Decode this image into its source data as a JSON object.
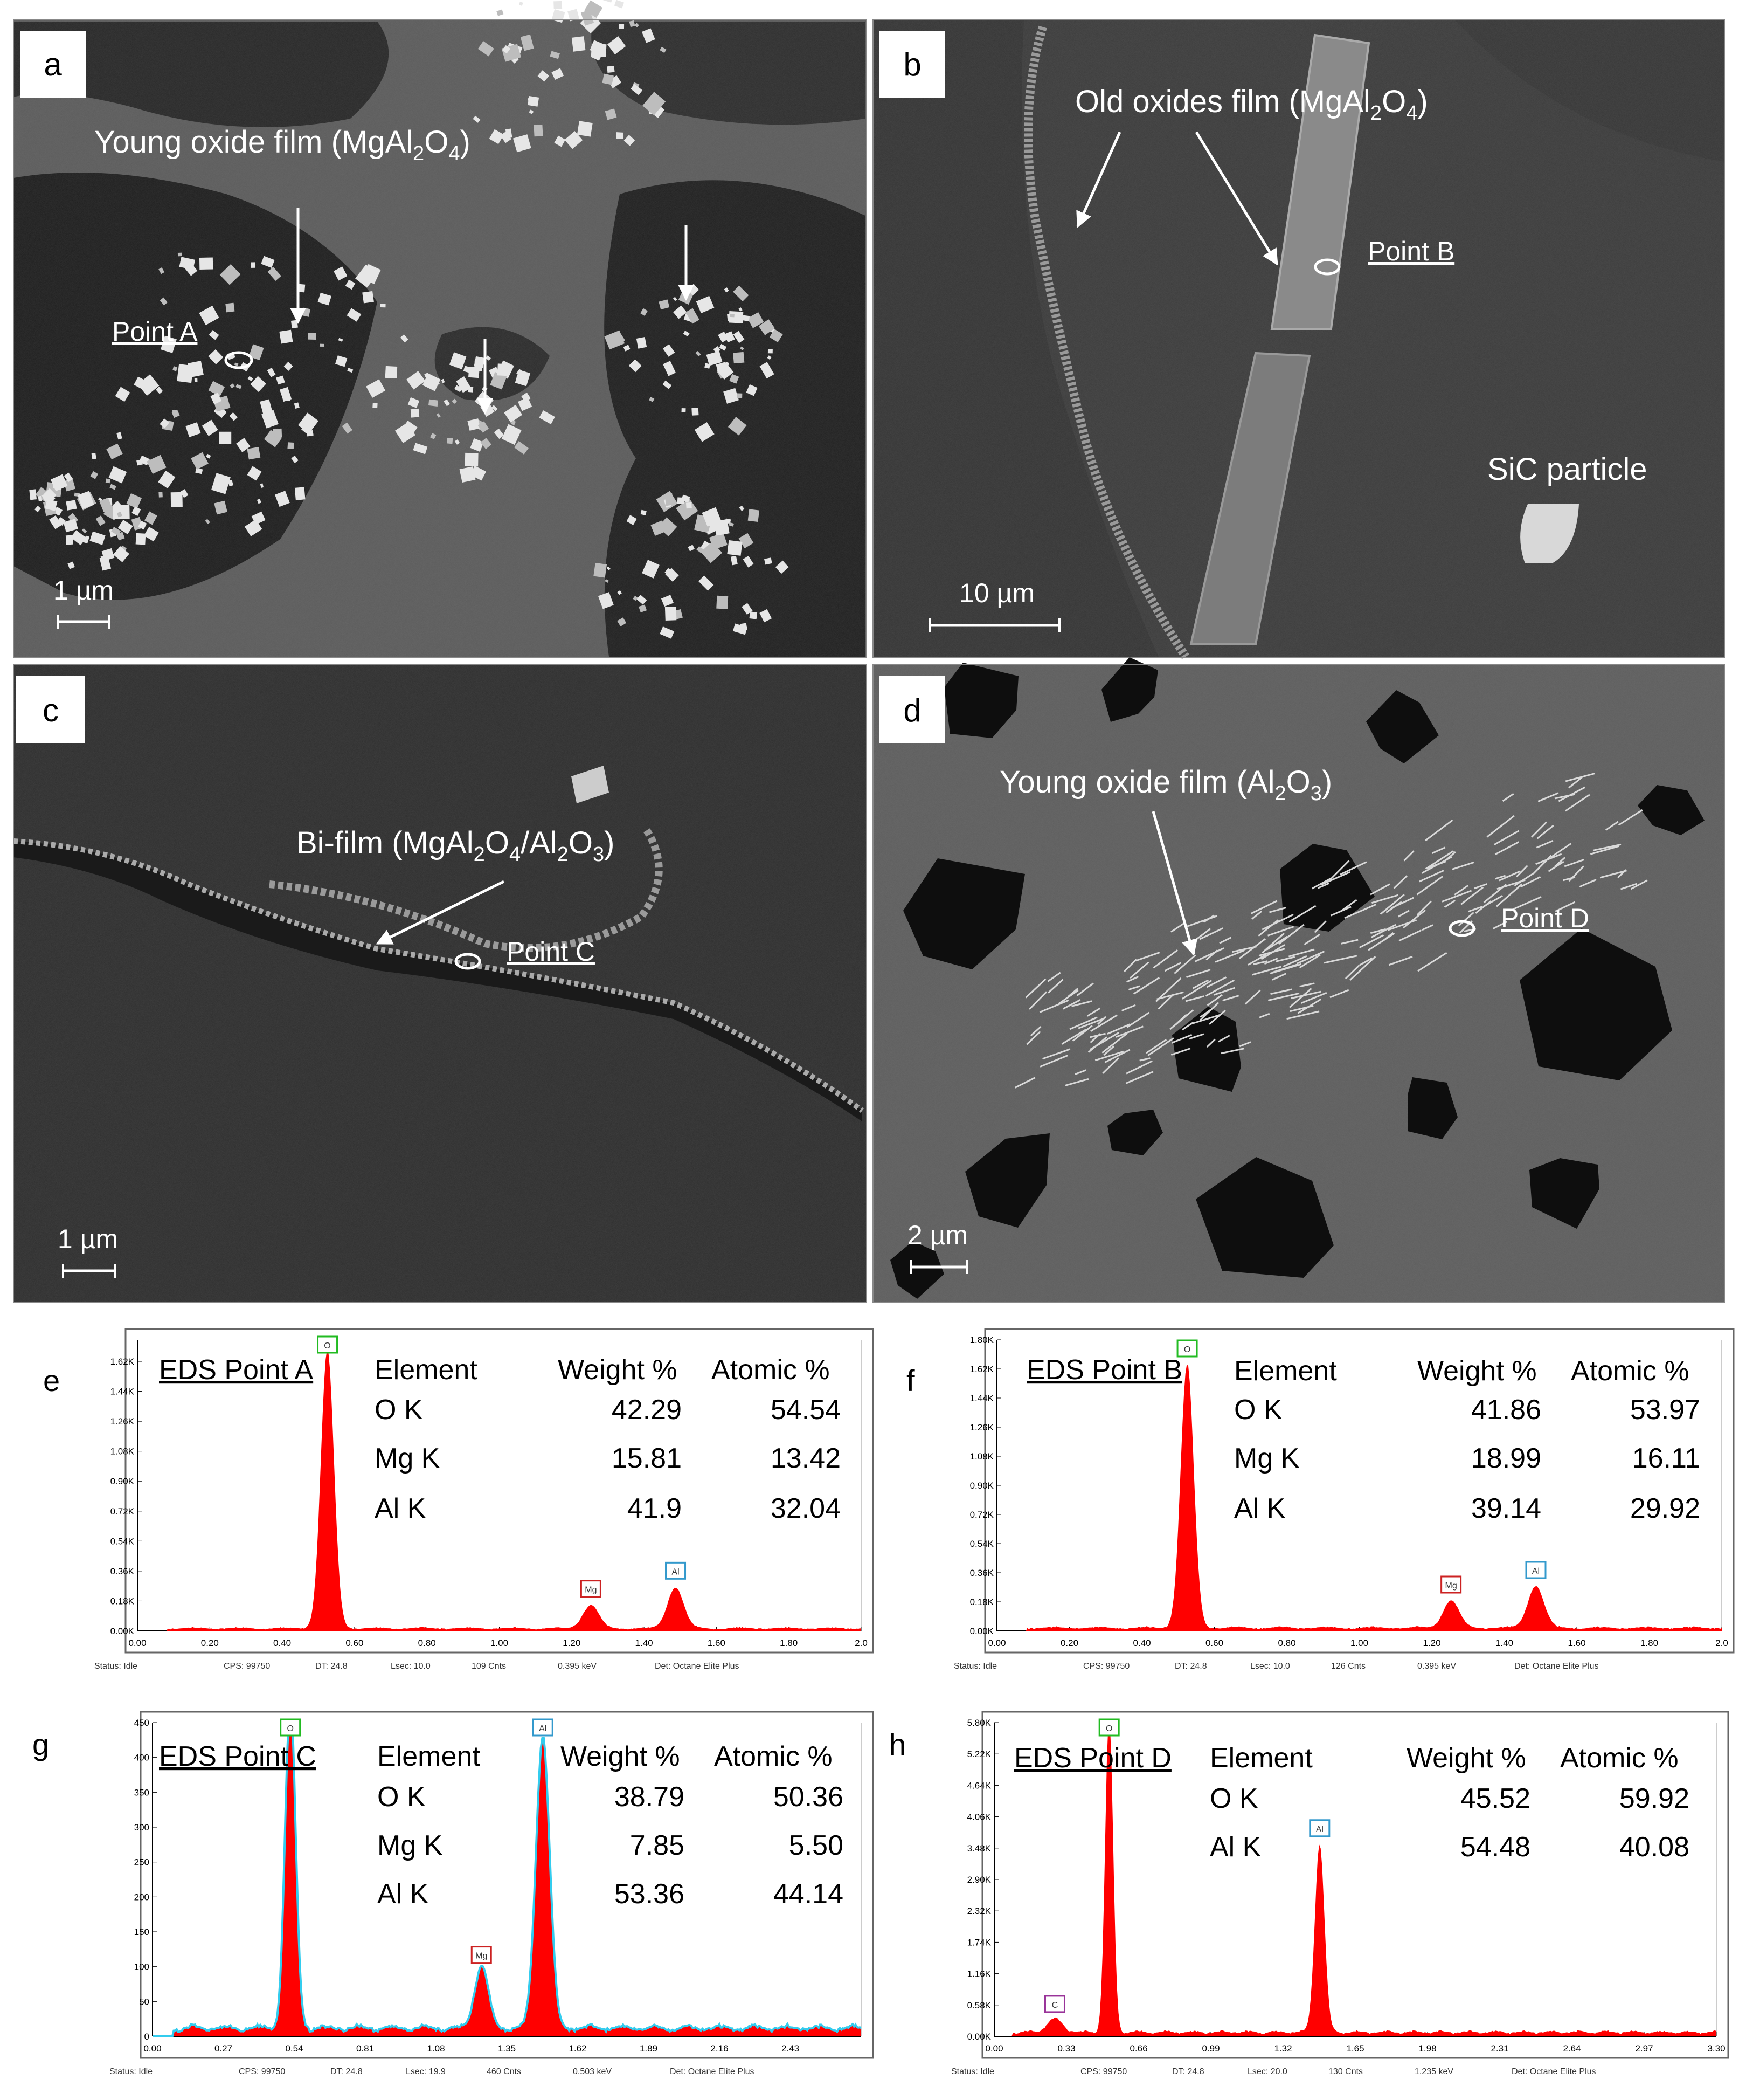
{
  "sem_panels": [
    {
      "letter": "a",
      "title_main": "Young oxide film (MgAl",
      "title_sub1": "2",
      "title_mid": "O",
      "title_sub2": "4",
      "title_end": ")",
      "point_label": "Point A",
      "scale_bar": "1 µm"
    },
    {
      "letter": "b",
      "title_main": "Old oxides film (MgAl",
      "title_sub1": "2",
      "title_mid": "O",
      "title_sub2": "4",
      "title_end": ")",
      "point_label": "Point B",
      "extra_label": "SiC particle",
      "scale_bar": "10 µm"
    },
    {
      "letter": "c",
      "title_main": "Bi-film (MgAl",
      "title_sub1": "2",
      "title_mid": "O",
      "title_sub2": "4",
      "title_mid2": "/Al",
      "title_sub3": "2",
      "title_mid3": "O",
      "title_sub4": "3",
      "title_end": ")",
      "point_label": "Point C",
      "scale_bar": "1 µm"
    },
    {
      "letter": "d",
      "title_main": "Young oxide film (Al",
      "title_sub1": "2",
      "title_mid": "O",
      "title_sub2": "3",
      "title_end": ")",
      "point_label": "Point D",
      "scale_bar": "2 µm"
    }
  ],
  "eds_panels": [
    {
      "letter": "e",
      "title": "EDS Point A",
      "headers": [
        "Element",
        "Weight %",
        "Atomic %"
      ],
      "rows": [
        [
          "O  K",
          "42.29",
          "54.54"
        ],
        [
          "Mg K",
          "15.81",
          "13.42"
        ],
        [
          "Al K",
          "41.9",
          "32.04"
        ]
      ],
      "y_ticks": [
        "1.62K",
        "1.44K",
        "1.26K",
        "1.08K",
        "0.90K",
        "0.72K",
        "0.54K",
        "0.36K",
        "0.18K",
        "0.00K"
      ],
      "x_ticks": [
        "0.00",
        "0.20",
        "0.40",
        "0.60",
        "0.80",
        "1.00",
        "1.20",
        "1.40",
        "1.60",
        "1.80",
        "2.0"
      ],
      "peak_labels": [
        "O",
        "Mg",
        "Al"
      ],
      "status": {
        "s1": "Status: Idle",
        "s2": "CPS: 99750",
        "s3": "DT: 24.8",
        "s4": "Lsec: 10.0",
        "s5": "109 Cnts",
        "s6": "0.395 keV",
        "s7": "Det: Octane Elite Plus"
      }
    },
    {
      "letter": "f",
      "title": "EDS Point B",
      "headers": [
        "Element",
        "Weight %",
        "Atomic %"
      ],
      "rows": [
        [
          "O  K",
          "41.86",
          "53.97"
        ],
        [
          "Mg K",
          "18.99",
          "16.11"
        ],
        [
          "Al K",
          "39.14",
          "29.92"
        ]
      ],
      "y_ticks": [
        "1.80K",
        "1.62K",
        "1.44K",
        "1.26K",
        "1.08K",
        "0.90K",
        "0.72K",
        "0.54K",
        "0.36K",
        "0.18K",
        "0.00K"
      ],
      "x_ticks": [
        "0.00",
        "0.20",
        "0.40",
        "0.60",
        "0.80",
        "1.00",
        "1.20",
        "1.40",
        "1.60",
        "1.80",
        "2.0"
      ],
      "peak_labels": [
        "O",
        "Mg",
        "Al"
      ],
      "status": {
        "s1": "Status: Idle",
        "s2": "CPS: 99750",
        "s3": "DT: 24.8",
        "s4": "Lsec: 10.0",
        "s5": "126 Cnts",
        "s6": "0.395 keV",
        "s7": "Det: Octane Elite Plus"
      }
    },
    {
      "letter": "g",
      "title": "EDS Point C",
      "headers": [
        "Element",
        "Weight %",
        "Atomic %"
      ],
      "rows": [
        [
          "O  K",
          "38.79",
          "50.36"
        ],
        [
          "Mg  K",
          "7.85",
          "5.50"
        ],
        [
          "Al K",
          "53.36",
          "44.14"
        ]
      ],
      "y_ticks": [
        "450",
        "400",
        "350",
        "300",
        "250",
        "200",
        "150",
        "100",
        "50",
        "0"
      ],
      "x_ticks": [
        "0.00",
        "0.27",
        "0.54",
        "0.81",
        "1.08",
        "1.35",
        "1.62",
        "1.89",
        "2.16",
        "2.43"
      ],
      "peak_labels": [
        "O",
        "Mg",
        "Al"
      ],
      "status": {
        "s1": "Status: Idle",
        "s2": "CPS: 99750",
        "s3": "DT: 24.8",
        "s4": "Lsec: 19.9",
        "s5": "460 Cnts",
        "s6": "0.503 keV",
        "s7": "Det: Octane Elite Plus"
      }
    },
    {
      "letter": "h",
      "title": "EDS Point D",
      "headers": [
        "Element",
        "Weight %",
        "Atomic %"
      ],
      "rows": [
        [
          "O  K",
          "45.52",
          "59.92"
        ],
        [
          "Al K",
          "54.48",
          "40.08"
        ]
      ],
      "y_ticks": [
        "5.80K",
        "5.22K",
        "4.64K",
        "4.06K",
        "3.48K",
        "2.90K",
        "2.32K",
        "1.74K",
        "1.16K",
        "0.58K",
        "0.00K"
      ],
      "x_ticks": [
        "0.00",
        "0.33",
        "0.66",
        "0.99",
        "1.32",
        "1.65",
        "1.98",
        "2.31",
        "2.64",
        "2.97",
        "3.30"
      ],
      "peak_labels": [
        "C",
        "O",
        "Al"
      ],
      "status": {
        "s1": "Status: Idle",
        "s2": "CPS: 99750",
        "s3": "DT: 24.8",
        "s4": "Lsec: 20.0",
        "s5": "130 Cnts",
        "s6": "1.235 keV",
        "s7": "Det: Octane Elite Plus"
      }
    }
  ],
  "colors": {
    "spectrum_fill": "#ff0000",
    "fit_line": "#33ccee",
    "sem_bg": "#555555",
    "sem_dark": "#222222"
  }
}
